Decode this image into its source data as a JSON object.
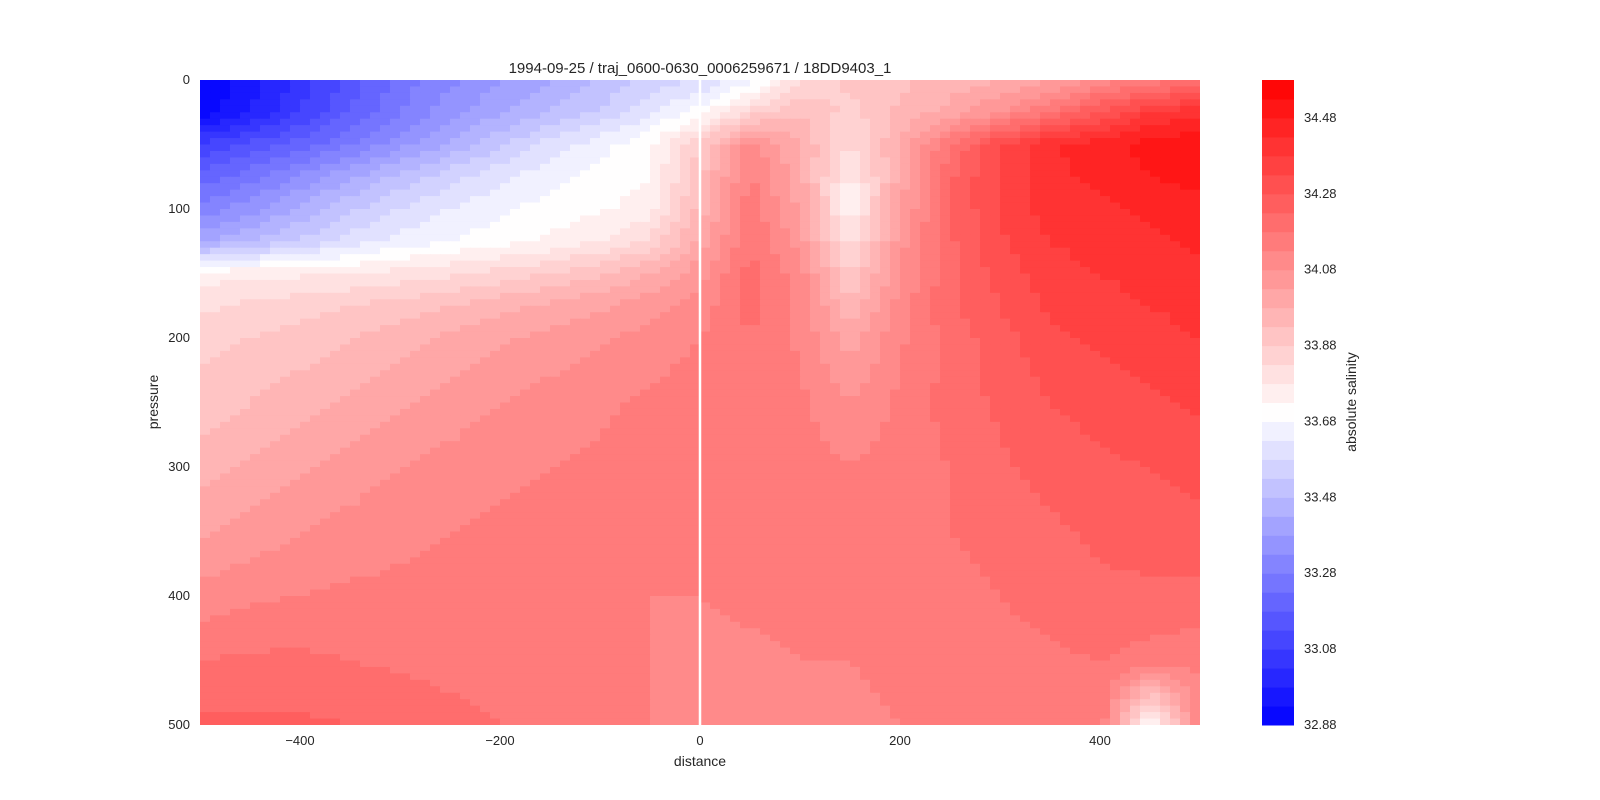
{
  "chart_data": {
    "type": "heatmap",
    "title": "1994-09-25 / traj_0600-0630_0006259671 / 18DD9403_1",
    "xlabel": "distance",
    "ylabel": "pressure",
    "xlim": [
      -500,
      500
    ],
    "ylim": [
      500,
      0
    ],
    "x_ticks": [
      -400,
      -200,
      0,
      200,
      400
    ],
    "x_tick_labels": [
      "−400",
      "−200",
      "0",
      "200",
      "400"
    ],
    "y_ticks": [
      0,
      100,
      200,
      300,
      400,
      500
    ],
    "y_tick_labels": [
      "0",
      "100",
      "200",
      "300",
      "400",
      "500"
    ],
    "grid": false,
    "reference_line_x": 0,
    "colormap": "bwr",
    "colorbar": {
      "label": "absolute salinity",
      "range": [
        32.88,
        34.58
      ],
      "ticks": [
        34.48,
        34.28,
        34.08,
        33.88,
        33.68,
        33.48,
        33.28,
        33.08,
        32.88
      ],
      "tick_labels": [
        "34.48",
        "34.28",
        "34.08",
        "33.88",
        "33.68",
        "33.48",
        "33.28",
        "33.08",
        "32.88"
      ],
      "color_low": "#0000ff",
      "color_mid": "#ffffff",
      "color_high": "#ff0000",
      "mid_value": 33.7,
      "levels": 34
    },
    "x": [
      -500,
      -450,
      -400,
      -350,
      -300,
      -250,
      -200,
      -150,
      -100,
      -50,
      0,
      50,
      100,
      150,
      200,
      250,
      300,
      350,
      400,
      450,
      500
    ],
    "y": [
      0,
      25,
      50,
      75,
      100,
      125,
      150,
      175,
      200,
      250,
      300,
      350,
      400,
      450,
      500
    ],
    "z": [
      [
        32.88,
        32.95,
        33.05,
        33.15,
        33.25,
        33.32,
        33.38,
        33.43,
        33.48,
        33.55,
        33.58,
        33.65,
        33.82,
        33.9,
        33.92,
        33.95,
        33.98,
        34.02,
        34.1,
        34.15,
        34.18
      ],
      [
        32.9,
        32.98,
        33.08,
        33.18,
        33.28,
        33.36,
        33.42,
        33.48,
        33.54,
        33.62,
        33.7,
        33.85,
        33.93,
        33.86,
        33.94,
        34.0,
        34.08,
        34.18,
        34.28,
        34.38,
        34.42
      ],
      [
        33.08,
        33.14,
        33.2,
        33.28,
        33.36,
        33.44,
        33.52,
        33.6,
        33.66,
        33.72,
        33.88,
        34.1,
        33.98,
        33.82,
        33.98,
        34.18,
        34.32,
        34.42,
        34.46,
        34.5,
        34.52
      ],
      [
        33.2,
        33.26,
        33.34,
        33.42,
        33.5,
        33.56,
        33.62,
        33.66,
        33.7,
        33.73,
        33.92,
        34.14,
        34.0,
        33.76,
        34.0,
        34.22,
        34.34,
        34.42,
        34.44,
        34.48,
        34.5
      ],
      [
        33.3,
        33.36,
        33.44,
        33.52,
        33.58,
        33.63,
        33.67,
        33.7,
        33.72,
        33.76,
        33.95,
        34.16,
        34.02,
        33.74,
        34.02,
        34.22,
        34.34,
        34.4,
        34.42,
        34.44,
        34.46
      ],
      [
        33.42,
        33.48,
        33.54,
        33.6,
        33.65,
        33.68,
        33.71,
        33.74,
        33.78,
        33.84,
        34.0,
        34.18,
        34.06,
        33.8,
        34.06,
        34.22,
        34.32,
        34.38,
        34.4,
        34.42,
        34.44
      ],
      [
        33.76,
        33.76,
        33.77,
        33.78,
        33.8,
        33.82,
        33.85,
        33.88,
        33.92,
        33.98,
        34.06,
        34.2,
        34.1,
        33.88,
        34.08,
        34.22,
        34.3,
        34.36,
        34.38,
        34.4,
        34.42
      ],
      [
        33.82,
        33.84,
        33.86,
        33.88,
        33.9,
        33.93,
        33.96,
        33.99,
        34.02,
        34.06,
        34.1,
        34.2,
        34.12,
        33.94,
        34.1,
        34.22,
        34.28,
        34.34,
        34.36,
        34.38,
        34.4
      ],
      [
        33.86,
        33.88,
        33.9,
        33.93,
        33.96,
        33.99,
        34.02,
        34.05,
        34.07,
        34.1,
        34.13,
        34.18,
        34.12,
        34.0,
        34.12,
        34.2,
        34.26,
        34.32,
        34.34,
        34.36,
        34.38
      ],
      [
        33.9,
        33.93,
        33.96,
        33.99,
        34.02,
        34.05,
        34.08,
        34.1,
        34.12,
        34.14,
        34.16,
        34.18,
        34.14,
        34.08,
        34.14,
        34.2,
        34.24,
        34.28,
        34.3,
        34.32,
        34.34
      ],
      [
        33.96,
        33.99,
        34.02,
        34.05,
        34.08,
        34.1,
        34.12,
        34.13,
        34.14,
        34.16,
        34.16,
        34.18,
        34.16,
        34.13,
        34.16,
        34.18,
        34.22,
        34.25,
        34.27,
        34.28,
        34.3
      ],
      [
        34.02,
        34.05,
        34.08,
        34.1,
        34.12,
        34.13,
        34.14,
        34.14,
        34.15,
        34.15,
        34.15,
        34.16,
        34.16,
        34.16,
        34.16,
        34.18,
        34.2,
        34.22,
        34.24,
        34.25,
        34.26
      ],
      [
        34.1,
        34.12,
        34.13,
        34.14,
        34.14,
        34.14,
        34.14,
        34.14,
        34.14,
        34.13,
        34.13,
        34.14,
        34.14,
        34.14,
        34.15,
        34.16,
        34.18,
        34.2,
        34.22,
        34.22,
        34.22
      ],
      [
        34.18,
        34.19,
        34.19,
        34.18,
        34.17,
        34.16,
        34.15,
        34.15,
        34.14,
        34.13,
        34.12,
        34.12,
        34.13,
        34.13,
        34.14,
        34.15,
        34.16,
        34.17,
        34.18,
        34.16,
        34.14
      ],
      [
        34.24,
        34.24,
        34.24,
        34.23,
        34.22,
        34.2,
        34.18,
        34.17,
        34.15,
        34.13,
        34.12,
        34.11,
        34.12,
        34.12,
        34.13,
        34.14,
        34.15,
        34.16,
        34.17,
        33.7,
        34.12
      ]
    ]
  }
}
